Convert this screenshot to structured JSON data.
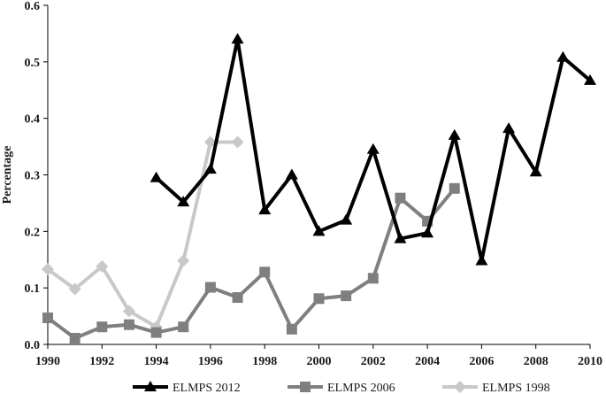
{
  "chart_data": {
    "type": "line",
    "title": "",
    "xlabel": "",
    "ylabel": "Percentage",
    "xlim": [
      1990,
      2010
    ],
    "ylim": [
      0,
      0.6
    ],
    "x_ticks": [
      "1990",
      "1992",
      "1994",
      "1996",
      "1998",
      "2000",
      "2002",
      "2004",
      "2006",
      "2008",
      "2010"
    ],
    "y_ticks": [
      "0.0",
      "0.1",
      "0.2",
      "0.3",
      "0.4",
      "0.5",
      "0.6"
    ],
    "grid": false,
    "legend_position": "bottom",
    "series": [
      {
        "name": "ELMPS 2012",
        "color": "#000000",
        "marker": "triangle",
        "x": [
          1994,
          1995,
          1996,
          1997,
          1998,
          1999,
          2000,
          2001,
          2002,
          2003,
          2004,
          2005,
          2006,
          2007,
          2008,
          2009,
          2010
        ],
        "values": [
          0.295,
          0.252,
          0.31,
          0.54,
          0.238,
          0.3,
          0.2,
          0.22,
          0.345,
          0.187,
          0.197,
          0.37,
          0.148,
          0.382,
          0.305,
          0.508,
          0.467
        ]
      },
      {
        "name": "ELMPS 2006",
        "color": "#7f7f7f",
        "marker": "square",
        "x": [
          1990,
          1991,
          1992,
          1993,
          1994,
          1995,
          1996,
          1997,
          1998,
          1999,
          2000,
          2001,
          2002,
          2003,
          2004,
          2005
        ],
        "values": [
          0.047,
          0.011,
          0.031,
          0.035,
          0.021,
          0.031,
          0.101,
          0.083,
          0.128,
          0.027,
          0.081,
          0.086,
          0.117,
          0.259,
          0.218,
          0.276
        ]
      },
      {
        "name": "ELMPS 1998",
        "color": "#c8c8c8",
        "marker": "diamond",
        "x": [
          1990,
          1991,
          1992,
          1993,
          1994,
          1995,
          1996,
          1997
        ],
        "values": [
          0.133,
          0.098,
          0.138,
          0.059,
          0.031,
          0.148,
          0.358,
          0.358
        ]
      }
    ]
  }
}
